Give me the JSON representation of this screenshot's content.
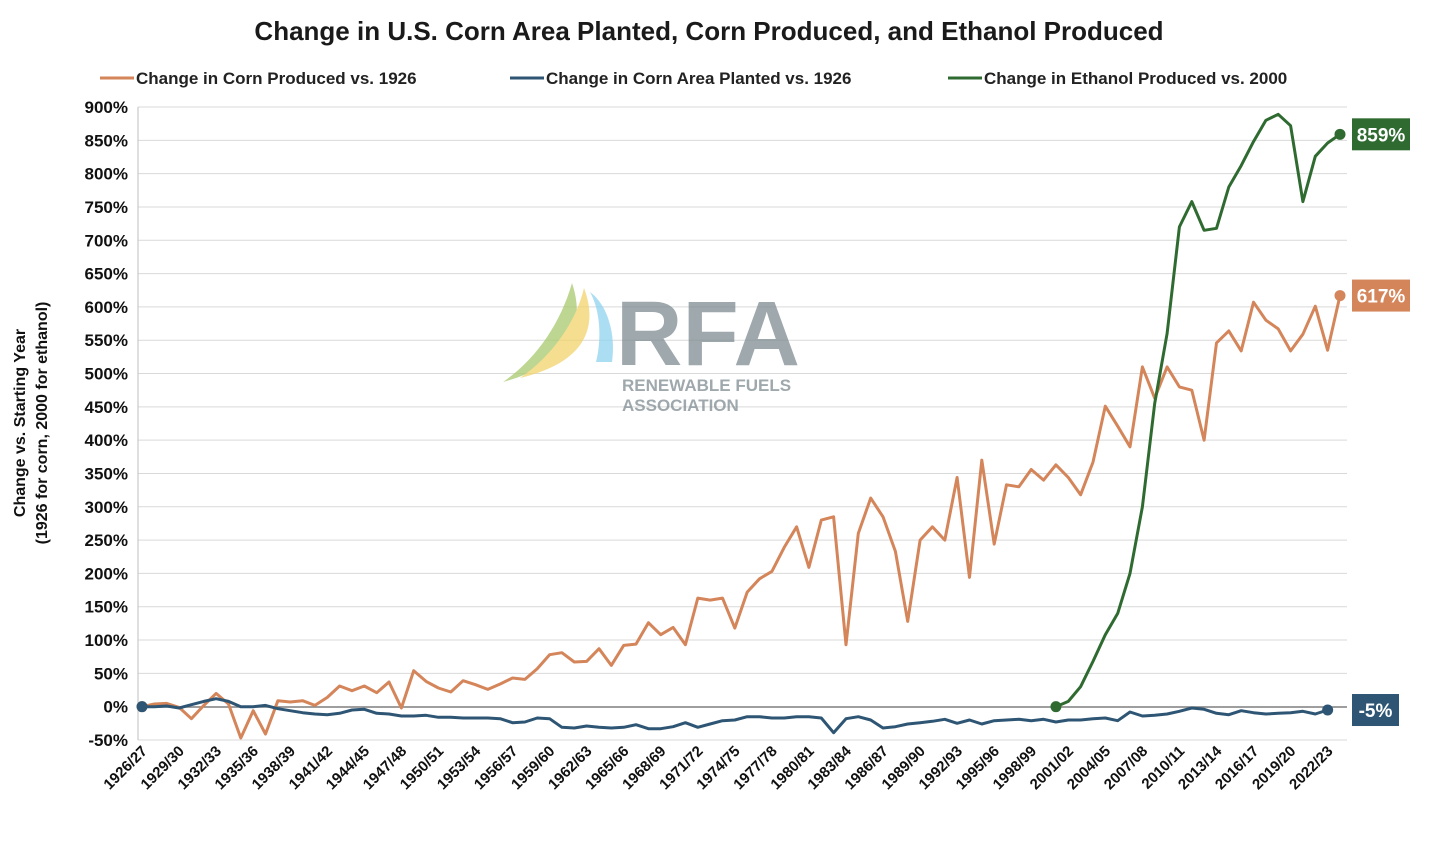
{
  "chart_data": {
    "type": "line",
    "title": "Change in U.S. Corn Area Planted, Corn Produced, and Ethanol Produced",
    "ylabel_line1": "Change vs. Starting Year",
    "ylabel_line2": "(1926 for corn, 2000 for ethanol)",
    "ylim": [
      -50,
      900
    ],
    "yticks": [
      -50,
      0,
      50,
      100,
      150,
      200,
      250,
      300,
      350,
      400,
      450,
      500,
      550,
      600,
      650,
      700,
      750,
      800,
      850,
      900
    ],
    "ytick_labels": [
      "-50%",
      "0%",
      "50%",
      "100%",
      "150%",
      "200%",
      "250%",
      "300%",
      "350%",
      "400%",
      "450%",
      "500%",
      "550%",
      "600%",
      "650%",
      "700%",
      "750%",
      "800%",
      "850%",
      "900%"
    ],
    "x_start_year": 1926,
    "x_count": 98,
    "xtick_labels": [
      "1926/27",
      "1929/30",
      "1932/33",
      "1935/36",
      "1938/39",
      "1941/42",
      "1944/45",
      "1947/48",
      "1950/51",
      "1953/54",
      "1956/57",
      "1959/60",
      "1962/63",
      "1965/66",
      "1968/69",
      "1971/72",
      "1974/75",
      "1977/78",
      "1980/81",
      "1983/84",
      "1986/87",
      "1989/90",
      "1992/93",
      "1995/96",
      "1998/99",
      "2001/02",
      "2004/05",
      "2007/08",
      "2010/11",
      "2013/14",
      "2016/17",
      "2019/20",
      "2022/23"
    ],
    "xtick_step": 3,
    "series": [
      {
        "name": "Change in Corn Produced vs. 1926",
        "color": "#d4855a",
        "start_index": 0,
        "end_label": "617%",
        "values": [
          0,
          4,
          5,
          -1,
          -18,
          2,
          20,
          4,
          -47,
          -6,
          -41,
          9,
          7,
          9,
          2,
          14,
          31,
          24,
          31,
          21,
          37,
          -2,
          54,
          38,
          28,
          22,
          39,
          33,
          26,
          34,
          43,
          41,
          57,
          78,
          81,
          67,
          68,
          87,
          62,
          92,
          94,
          126,
          108,
          119,
          93,
          163,
          160,
          163,
          118,
          172,
          192,
          203,
          239,
          270,
          209,
          280,
          285,
          93,
          260,
          313,
          285,
          233,
          128,
          250,
          270,
          250,
          344,
          194,
          370,
          244,
          333,
          330,
          356,
          340,
          363,
          344,
          318,
          367,
          451,
          421,
          390,
          510,
          463,
          510,
          480,
          475,
          400,
          546,
          564,
          534,
          607,
          580,
          567,
          534,
          559,
          601,
          535,
          617
        ]
      },
      {
        "name": "Change in Corn Area Planted vs. 1926",
        "color": "#2e5674",
        "start_index": 0,
        "end_label": "-5%",
        "values": [
          0,
          0,
          1,
          -2,
          3,
          8,
          12,
          8,
          0,
          0,
          2,
          -3,
          -6,
          -9,
          -11,
          -12,
          -10,
          -5,
          -4,
          -10,
          -11,
          -14,
          -14,
          -13,
          -16,
          -16,
          -17,
          -17,
          -17,
          -18,
          -24,
          -23,
          -17,
          -18,
          -31,
          -32,
          -29,
          -31,
          -32,
          -31,
          -27,
          -33,
          -33,
          -30,
          -24,
          -31,
          -26,
          -21,
          -20,
          -15,
          -15,
          -17,
          -17,
          -15,
          -15,
          -17,
          -39,
          -18,
          -15,
          -20,
          -32,
          -30,
          -26,
          -24,
          -22,
          -19,
          -25,
          -20,
          -26,
          -21,
          -20,
          -19,
          -21,
          -19,
          -23,
          -20,
          -20,
          -18,
          -17,
          -21,
          -8,
          -14,
          -13,
          -11,
          -7,
          -2,
          -4,
          -10,
          -12,
          -6,
          -9,
          -11,
          -10,
          -9,
          -7,
          -11,
          -5
        ]
      },
      {
        "name": "Change in Ethanol Produced vs. 2000",
        "color": "#2f6b31",
        "start_index": 74,
        "end_label": "859%",
        "values": [
          0,
          8,
          30,
          68,
          108,
          140,
          200,
          300,
          455,
          560,
          720,
          758,
          715,
          718,
          780,
          812,
          848,
          880,
          889,
          872,
          758,
          826,
          846,
          859
        ]
      }
    ]
  },
  "logo": {
    "name": "RFA",
    "line1": "RENEWABLE FUELS",
    "line2": "ASSOCIATION"
  }
}
